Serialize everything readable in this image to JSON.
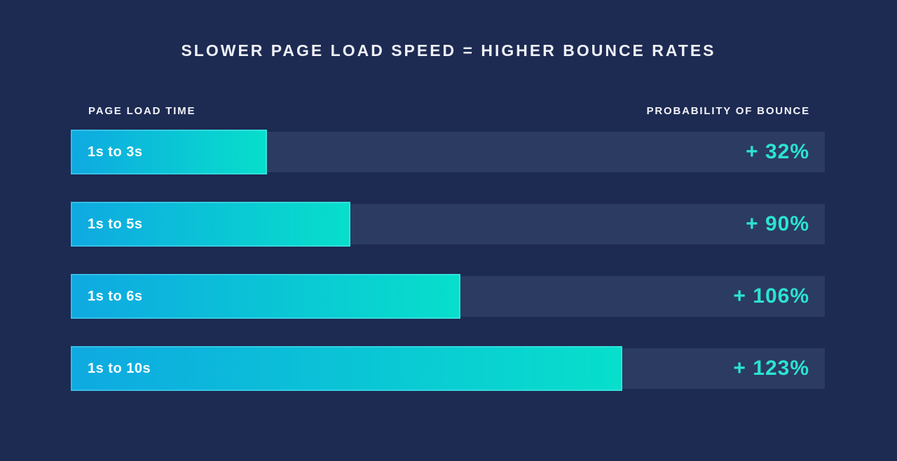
{
  "chart_data": {
    "type": "bar",
    "orientation": "horizontal",
    "title": "SLOWER PAGE LOAD SPEED = HIGHER BOUNCE RATES",
    "left_header": "PAGE LOAD TIME",
    "right_header": "PROBABILITY OF BOUNCE",
    "categories": [
      "1s to 3s",
      "1s to 5s",
      "1s to 6s",
      "1s to 10s"
    ],
    "values": [
      32,
      90,
      106,
      123
    ],
    "value_labels": [
      "+ 32%",
      "+ 90%",
      "+ 106%",
      "+ 123%"
    ],
    "bar_width_pct": [
      26.0,
      37.1,
      51.7,
      73.1
    ],
    "unit": "%",
    "legend": "none",
    "grid": false,
    "colors": {
      "background": "#1d2a52",
      "track": "#2c3b61",
      "bar_gradient_start": "#0ea9e1",
      "bar_gradient_end": "#07dfcb",
      "value_text": "#2be3d2",
      "label_text": "#ffffff",
      "title_text": "#eef1f7"
    }
  }
}
